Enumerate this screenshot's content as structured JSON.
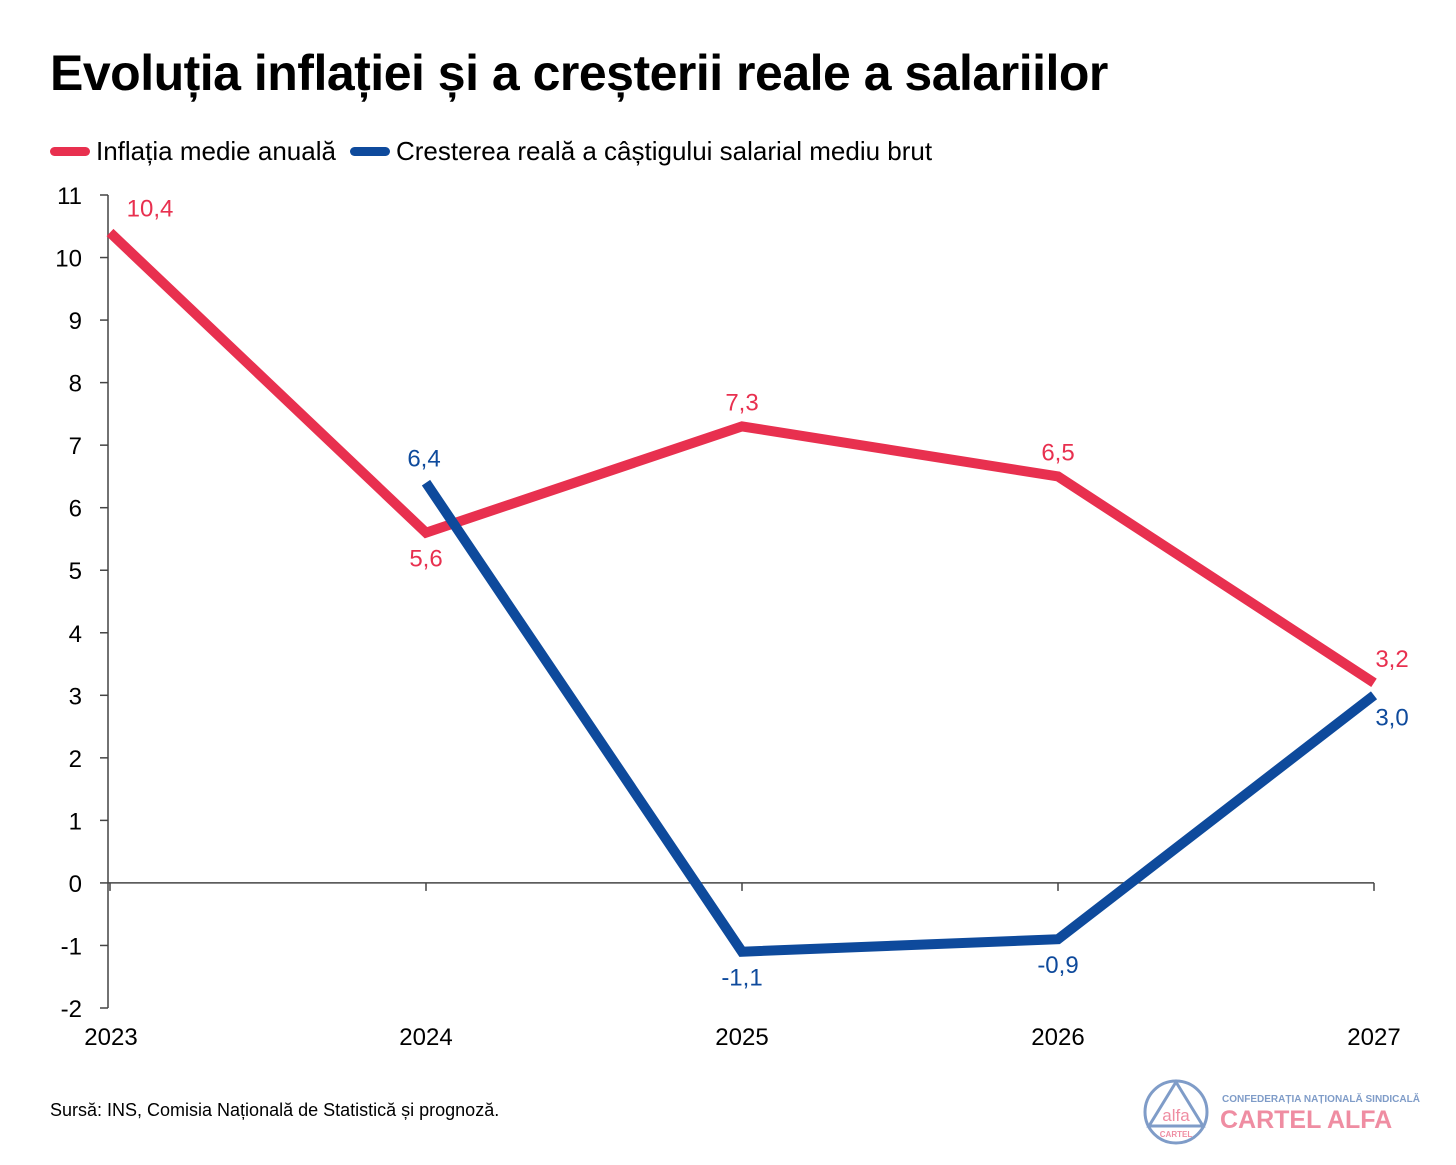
{
  "title": "Evoluția inflației și a creșterii reale a salariilor",
  "source": "Sursă: INS, Comisia Națională de Statistică și prognoză.",
  "logo": {
    "circle_text": "alfa",
    "circle_sub": "CARTEL",
    "line1": "CONFEDERAȚIA NAȚIONALĂ SINDICALĂ",
    "line2": "CARTEL ALFA"
  },
  "colors": {
    "inflation": "#e8304f",
    "wages": "#0e4a9c"
  },
  "chart_data": {
    "type": "line",
    "title": "Evoluția inflației și a creșterii reale a salariilor",
    "categories": [
      "2023",
      "2024",
      "2025",
      "2026",
      "2027"
    ],
    "ylim": [
      -2,
      11
    ],
    "yticks": [
      "11",
      "10",
      "9",
      "8",
      "7",
      "6",
      "5",
      "4",
      "3",
      "2",
      "1",
      "0",
      "-1",
      "-2"
    ],
    "legend": "top-left",
    "series": [
      {
        "name": "Inflația medie anuală",
        "color": "#e8304f",
        "values": [
          10.4,
          5.6,
          7.3,
          6.5,
          3.2
        ],
        "labels": [
          "10,4",
          "5,6",
          "7,3",
          "6,5",
          "3,2"
        ]
      },
      {
        "name": "Cresterea reală a câștigului salarial mediu brut",
        "color": "#0e4a9c",
        "values": [
          null,
          6.4,
          -1.1,
          -0.9,
          3.0
        ],
        "labels": [
          null,
          "6,4",
          "-1,1",
          "-0,9",
          "3,0"
        ]
      }
    ]
  }
}
